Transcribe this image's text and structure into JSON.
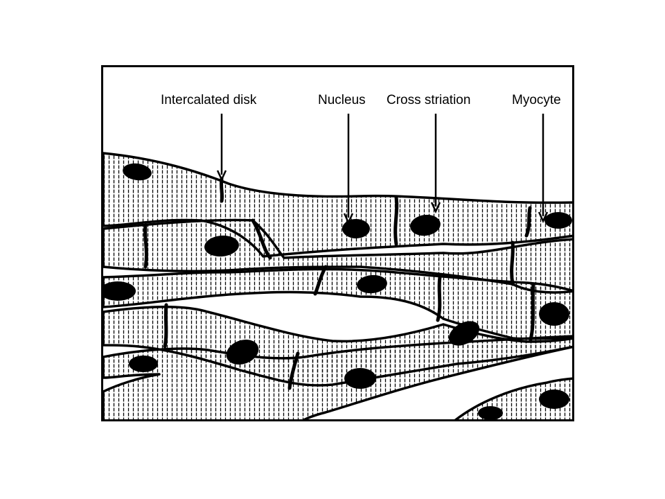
{
  "labels": {
    "intercalated_disk": "Intercalated disk",
    "nucleus": "Nucleus",
    "cross_striation": "Cross striation",
    "myocyte": "Myocyte"
  },
  "colors": {
    "ink": "#000000",
    "paper": "#ffffff"
  }
}
